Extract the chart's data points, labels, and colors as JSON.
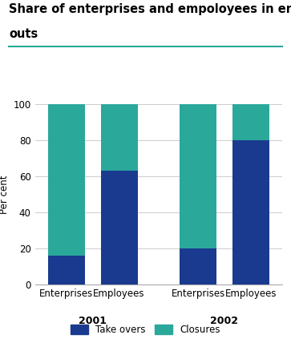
{
  "title_line1": "Share of enterprises and empoloyees in enterprise drop",
  "title_line2": "outs",
  "ylabel": "Per cent",
  "ylim": [
    0,
    100
  ],
  "yticks": [
    0,
    20,
    40,
    60,
    80,
    100
  ],
  "categories": [
    "Enterprises",
    "Employees",
    "Enterprises",
    "Employees"
  ],
  "year_labels": [
    "2001",
    "2002"
  ],
  "takeovers": [
    16,
    63,
    20,
    80
  ],
  "closures": [
    84,
    37,
    80,
    20
  ],
  "color_takeovers": "#1a3a8f",
  "color_closures": "#2aa89a",
  "legend_labels": [
    "Take overs",
    "Closures"
  ],
  "bar_width": 0.7,
  "background_color": "#ffffff",
  "grid_color": "#cccccc",
  "title_fontsize": 10.5,
  "axis_label_fontsize": 8.5,
  "tick_fontsize": 8.5,
  "legend_fontsize": 8.5,
  "year_fontsize": 9,
  "teal_line_color": "#2aa89a"
}
